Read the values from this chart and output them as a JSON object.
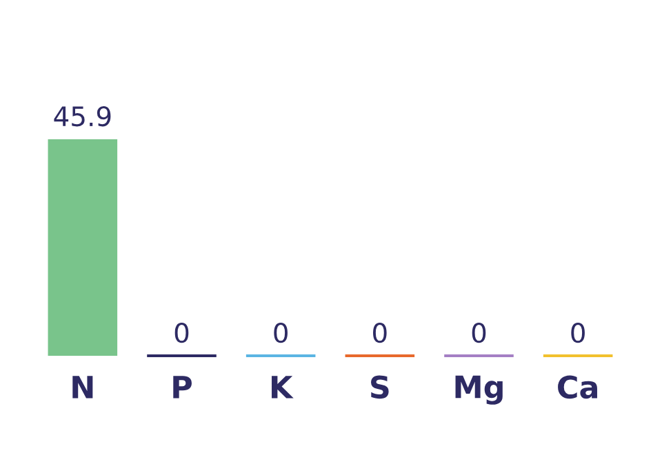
{
  "chart_data": {
    "type": "bar",
    "categories": [
      "N",
      "P",
      "K",
      "S",
      "Mg",
      "Ca"
    ],
    "values": [
      45.9,
      0,
      0,
      0,
      0,
      0
    ],
    "colors": [
      "#79c48b",
      "#2d2a63",
      "#5bb5e3",
      "#e8692c",
      "#a47fc4",
      "#f2c12e"
    ],
    "data_labels": true
  }
}
